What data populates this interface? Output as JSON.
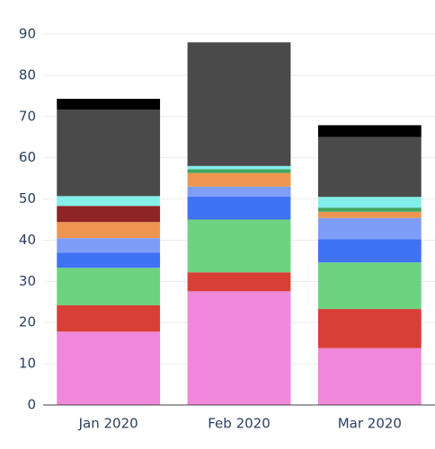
{
  "chart_data": {
    "type": "bar",
    "stacked": true,
    "categories": [
      "Jan 2020",
      "Feb 2020",
      "Mar 2020"
    ],
    "ylim": [
      0,
      90
    ],
    "y_ticks": [
      0,
      10,
      20,
      30,
      40,
      50,
      60,
      70,
      80,
      90
    ],
    "grid": true,
    "legend": "none",
    "series": [
      {
        "color": "#ef87da",
        "values": [
          17.8,
          27.6,
          13.8
        ]
      },
      {
        "color": "#d83f36",
        "values": [
          6.4,
          4.6,
          9.5
        ]
      },
      {
        "color": "#6dd381",
        "values": [
          9.1,
          12.8,
          11.3
        ]
      },
      {
        "color": "#3f72f5",
        "values": [
          3.7,
          5.6,
          5.6
        ]
      },
      {
        "color": "#7e9df6",
        "values": [
          3.5,
          2.4,
          5.2
        ]
      },
      {
        "color": "#ee9650",
        "values": [
          3.9,
          3.3,
          1.5
        ]
      },
      {
        "color": "#40a560",
        "values": [
          0,
          0.9,
          1.0
        ]
      },
      {
        "color": "#8e2424",
        "values": [
          3.9,
          0,
          0
        ]
      },
      {
        "color": "#83eeeb",
        "values": [
          2.4,
          0.8,
          2.6
        ]
      },
      {
        "color": "#4a4a4a",
        "values": [
          21.0,
          30.0,
          14.5
        ]
      },
      {
        "color": "#000000",
        "values": [
          2.6,
          0,
          2.9
        ]
      }
    ]
  }
}
